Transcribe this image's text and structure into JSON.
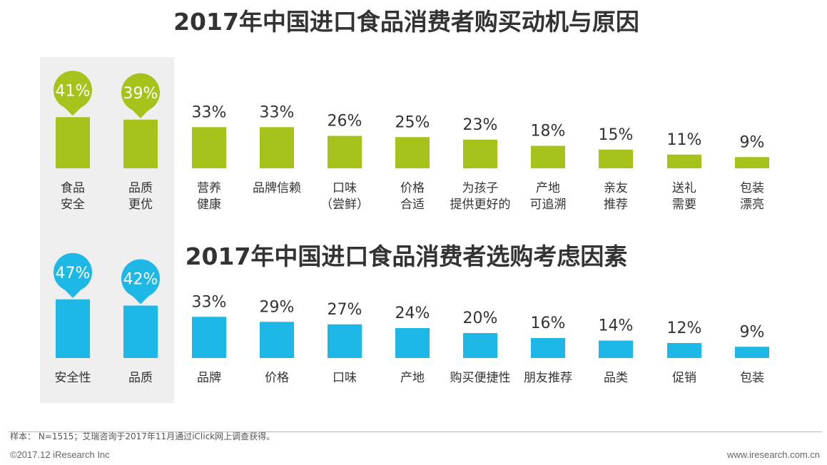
{
  "chart_data": [
    {
      "type": "bar",
      "title": "2017年中国进口食品消费者购买动机与原因",
      "categories": [
        "食品\n安全",
        "品质\n更优",
        "营养\n健康",
        "品牌信赖",
        "口味\n（尝鲜）",
        "价格\n合适",
        "为孩子\n提供更好的",
        "产地\n可追溯",
        "亲友\n推荐",
        "送礼\n需要",
        "包装\n漂亮"
      ],
      "values": [
        41,
        39,
        33,
        33,
        26,
        25,
        23,
        18,
        15,
        11,
        9
      ],
      "value_labels": [
        "41%",
        "39%",
        "33%",
        "33%",
        "26%",
        "25%",
        "23%",
        "18%",
        "15%",
        "11%",
        "9%"
      ],
      "color": "#a5c31b",
      "highlighted_count": 2
    },
    {
      "type": "bar",
      "title": "2017年中国进口食品消费者选购考虑因素",
      "categories": [
        "安全性",
        "品质",
        "品牌",
        "价格",
        "口味",
        "产地",
        "购买便捷性",
        "朋友推荐",
        "品类",
        "促销",
        "包装"
      ],
      "values": [
        47,
        42,
        33,
        29,
        27,
        24,
        20,
        16,
        14,
        12,
        9
      ],
      "value_labels": [
        "47%",
        "42%",
        "33%",
        "29%",
        "27%",
        "24%",
        "20%",
        "16%",
        "14%",
        "12%",
        "9%"
      ],
      "color": "#1eb8e6",
      "highlighted_count": 2
    }
  ],
  "footnote": "样本： N=1515；艾瑞咨询于2017年11月通过iClick网上调查获得。",
  "copyright": "©2017.12 iResearch Inc",
  "website": "www.iresearch.com.cn"
}
